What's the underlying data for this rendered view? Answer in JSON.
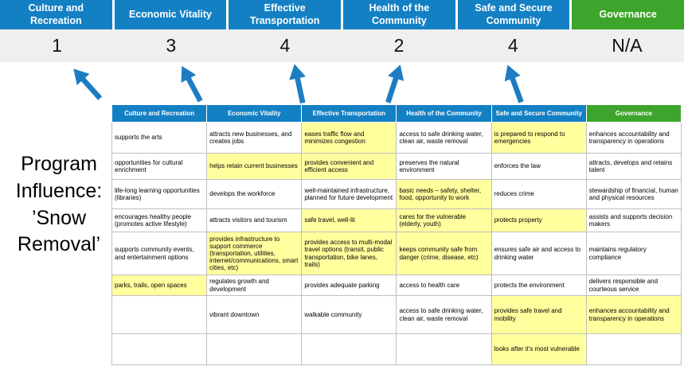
{
  "title": "Program\nInfluence:\n’Snow\nRemoval’",
  "colors": {
    "header_blue": "#1480c4",
    "header_green": "#3da52b",
    "band_gray": "#eef0f0",
    "highlight_yellow": "#ffff9e",
    "arrow_blue": "#1e7dc2"
  },
  "categories": [
    {
      "label": "Culture and Recreation",
      "score": "1",
      "theme": "blue"
    },
    {
      "label": "Economic Vitality",
      "score": "3",
      "theme": "blue"
    },
    {
      "label": "Effective Transportation",
      "score": "4",
      "theme": "blue"
    },
    {
      "label": "Health of the Community",
      "score": "2",
      "theme": "blue"
    },
    {
      "label": "Safe and Secure Community",
      "score": "4",
      "theme": "blue"
    },
    {
      "label": "Governance",
      "score": "N/A",
      "theme": "green"
    }
  ],
  "table": {
    "headers": [
      "Culture and Recreation",
      "Economic Vitality",
      "Effective Transportation",
      "Health of the Community",
      "Safe and Secure Community",
      "Governance"
    ],
    "rows": [
      [
        {
          "text": "supports the arts",
          "highlight": false
        },
        {
          "text": "attracts new businesses, and creates jobs",
          "highlight": false
        },
        {
          "text": "eases traffic flow and minimizes congestion",
          "highlight": true
        },
        {
          "text": "access to safe drinking water, clean air, waste removal",
          "highlight": false
        },
        {
          "text": "is prepared to respond to emergencies",
          "highlight": true
        },
        {
          "text": "enhances accountability and transparency in operations",
          "highlight": false
        }
      ],
      [
        {
          "text": "opportunities for cultural enrichment",
          "highlight": false
        },
        {
          "text": "helps retain current businesses",
          "highlight": true
        },
        {
          "text": "provides convenient and efficient access",
          "highlight": true
        },
        {
          "text": "preserves the natural environment",
          "highlight": false
        },
        {
          "text": "enforces the law",
          "highlight": false
        },
        {
          "text": "attracts, develops and retains talent",
          "highlight": false
        }
      ],
      [
        {
          "text": "life-long learning opportunities (libraries)",
          "highlight": false
        },
        {
          "text": "develops the workforce",
          "highlight": false
        },
        {
          "text": "well-maintained infrastructure, planned for future development",
          "highlight": false
        },
        {
          "text": "basic needs – safety, shelter, food, opportunity to work",
          "highlight": true
        },
        {
          "text": "reduces crime",
          "highlight": false
        },
        {
          "text": "stewardship of financial, human and physical resources",
          "highlight": false
        }
      ],
      [
        {
          "text": "encourages healthy people (promotes active lifestyle)",
          "highlight": false
        },
        {
          "text": "attracts visitors and tourism",
          "highlight": false
        },
        {
          "text": "safe travel, well-lit",
          "highlight": true
        },
        {
          "text": "cares for the vulnerable (elderly, youth)",
          "highlight": true
        },
        {
          "text": "protects property",
          "highlight": true
        },
        {
          "text": "assists and supports decision makers",
          "highlight": false
        }
      ],
      [
        {
          "text": "supports community events, and entertainment options",
          "highlight": false
        },
        {
          "text": "provides infrastructure to support commerce (transportation, utilities, internet/communications, smart cities, etc)",
          "highlight": true
        },
        {
          "text": "provides access to multi-modal travel options (transit, public transportation, bike lanes, trails)",
          "highlight": true
        },
        {
          "text": "keeps community safe from danger (crime, disease, etc)",
          "highlight": true
        },
        {
          "text": "ensures safe air and access to drinking water",
          "highlight": false
        },
        {
          "text": "maintains regulatory compliance",
          "highlight": false
        }
      ],
      [
        {
          "text": "parks, trails, open spaces",
          "highlight": true
        },
        {
          "text": "regulates growth and development",
          "highlight": false
        },
        {
          "text": "provides adequate parking",
          "highlight": false
        },
        {
          "text": "access to health care",
          "highlight": false
        },
        {
          "text": "protects the environment",
          "highlight": false
        },
        {
          "text": "delivers responsible and courteous service",
          "highlight": false
        }
      ],
      [
        {
          "text": "",
          "highlight": false
        },
        {
          "text": "vibrant downtown",
          "highlight": false
        },
        {
          "text": "walkable community",
          "highlight": false
        },
        {
          "text": "access to safe drinking water, clean air, waste removal",
          "highlight": false
        },
        {
          "text": "provides safe travel and mobility",
          "highlight": true
        },
        {
          "text": "enhances accountability and transparency in operations",
          "highlight": true
        }
      ],
      [
        {
          "text": "",
          "highlight": false
        },
        {
          "text": "",
          "highlight": false
        },
        {
          "text": "",
          "highlight": false
        },
        {
          "text": "",
          "highlight": false
        },
        {
          "text": "looks after it's most vulnerable",
          "highlight": true
        },
        {
          "text": "",
          "highlight": false
        }
      ]
    ]
  }
}
